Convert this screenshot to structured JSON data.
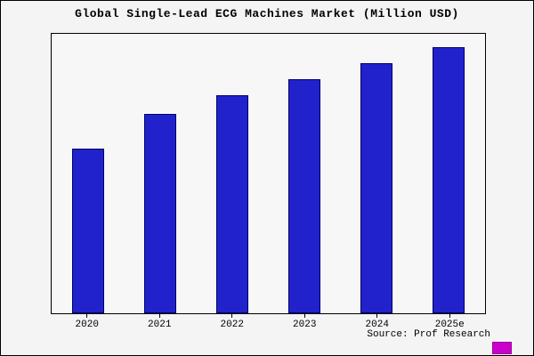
{
  "title": "Global Single-Lead ECG Machines Market (Million USD)",
  "source": "Source: Prof Research",
  "colors": {
    "bar_fill": "#2222cc",
    "bar_edge": "#000066",
    "badge": "#cc00cc",
    "background": "#f4f4f4",
    "frame": "#000000"
  },
  "chart_data": {
    "type": "bar",
    "title": "Global Single-Lead ECG Machines Market (Million USD)",
    "categories": [
      "2020",
      "2021",
      "2022",
      "2023",
      "2024",
      "2025e"
    ],
    "values": [
      62,
      75,
      82,
      88,
      94,
      100
    ],
    "xlabel": "",
    "ylabel": "",
    "ylim": [
      0,
      105
    ],
    "grid": false,
    "legend": false,
    "y_axis_labels_visible": false,
    "annotation": "Source: Prof Research"
  }
}
